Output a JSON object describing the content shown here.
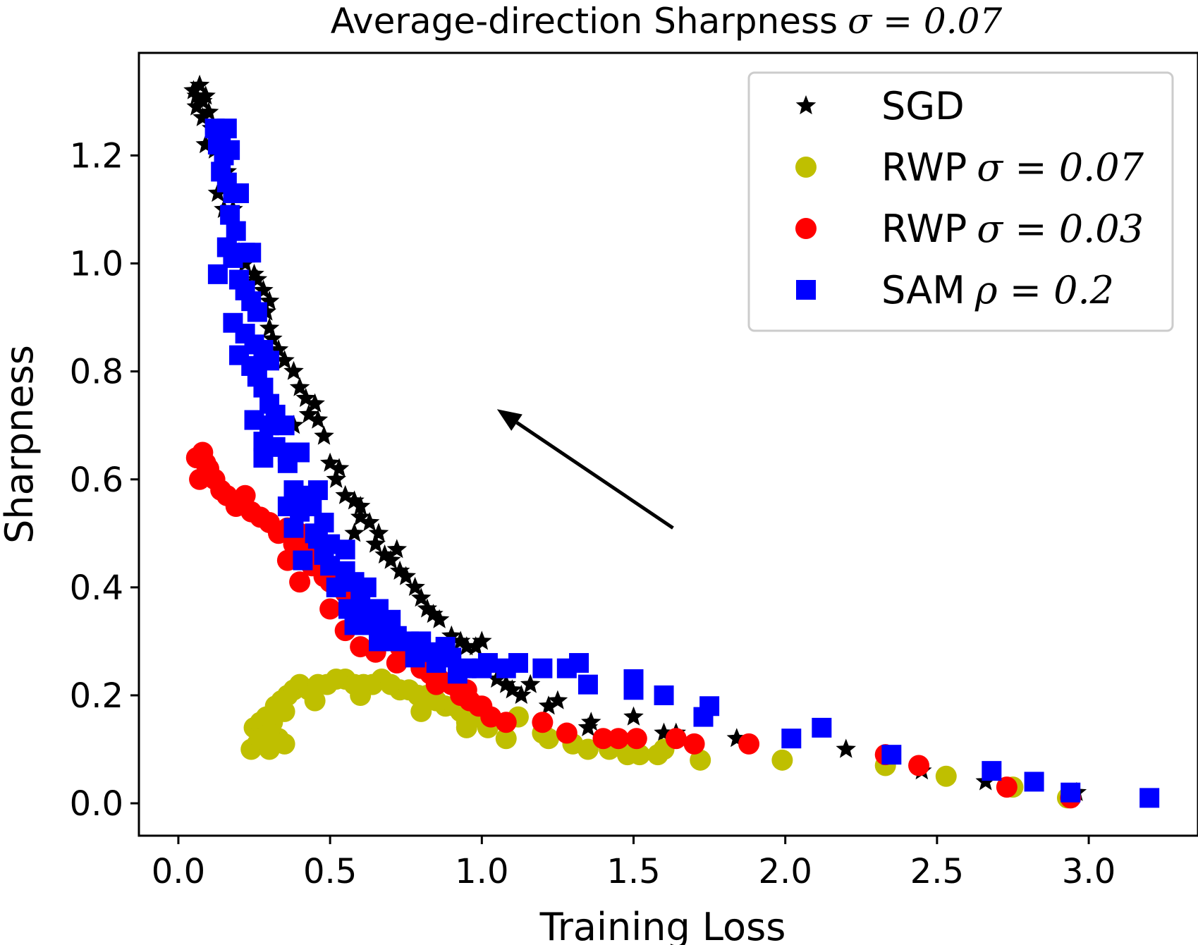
{
  "chart_data": {
    "type": "scatter",
    "title": "Average-direction Sharpness",
    "title_math": "σ = 0.07",
    "xlabel": "Training Loss",
    "ylabel": "Sharpness",
    "xlim": [
      -0.13,
      3.36
    ],
    "ylim": [
      -0.06,
      1.39
    ],
    "xticks": [
      0.0,
      0.5,
      1.0,
      1.5,
      2.0,
      2.5,
      3.0
    ],
    "xtick_labels": [
      "0.0",
      "0.5",
      "1.0",
      "1.5",
      "2.0",
      "2.5",
      "3.0"
    ],
    "yticks": [
      0.0,
      0.2,
      0.4,
      0.6,
      0.8,
      1.0,
      1.2
    ],
    "ytick_labels": [
      "0.0",
      "0.2",
      "0.4",
      "0.6",
      "0.8",
      "1.0",
      "1.2"
    ],
    "legend_position": "top-right",
    "annotation": {
      "type": "arrow",
      "from": [
        1.63,
        0.51
      ],
      "to": [
        1.05,
        0.73
      ]
    },
    "series": [
      {
        "name": "SGD",
        "label_math": "",
        "marker": "star",
        "color": "#000000",
        "points": [
          [
            0.05,
            1.32
          ],
          [
            0.06,
            1.31
          ],
          [
            0.07,
            1.33
          ],
          [
            0.08,
            1.3
          ],
          [
            0.09,
            1.31
          ],
          [
            0.06,
            1.29
          ],
          [
            0.1,
            1.28
          ],
          [
            0.08,
            1.27
          ],
          [
            0.11,
            1.25
          ],
          [
            0.09,
            1.22
          ],
          [
            0.12,
            1.21
          ],
          [
            0.14,
            1.18
          ],
          [
            0.16,
            1.17
          ],
          [
            0.13,
            1.13
          ],
          [
            0.18,
            1.1
          ],
          [
            0.19,
            1.07
          ],
          [
            0.22,
            1.0
          ],
          [
            0.25,
            0.98
          ],
          [
            0.28,
            0.95
          ],
          [
            0.3,
            0.93
          ],
          [
            0.3,
            0.88
          ],
          [
            0.31,
            0.86
          ],
          [
            0.33,
            0.84
          ],
          [
            0.35,
            0.82
          ],
          [
            0.38,
            0.8
          ],
          [
            0.4,
            0.77
          ],
          [
            0.42,
            0.75
          ],
          [
            0.43,
            0.72
          ],
          [
            0.46,
            0.71
          ],
          [
            0.38,
            0.7
          ],
          [
            0.5,
            0.63
          ],
          [
            0.52,
            0.6
          ],
          [
            0.55,
            0.57
          ],
          [
            0.58,
            0.56
          ],
          [
            0.6,
            0.55
          ],
          [
            0.63,
            0.52
          ],
          [
            0.58,
            0.5
          ],
          [
            0.65,
            0.48
          ],
          [
            0.68,
            0.46
          ],
          [
            0.7,
            0.45
          ],
          [
            0.73,
            0.43
          ],
          [
            0.75,
            0.42
          ],
          [
            0.78,
            0.4
          ],
          [
            0.8,
            0.38
          ],
          [
            0.82,
            0.36
          ],
          [
            0.84,
            0.35
          ],
          [
            0.86,
            0.34
          ],
          [
            0.9,
            0.31
          ],
          [
            0.93,
            0.3
          ],
          [
            0.95,
            0.29
          ],
          [
            0.98,
            0.29
          ],
          [
            1.0,
            0.3
          ],
          [
            1.05,
            0.23
          ],
          [
            1.08,
            0.22
          ],
          [
            1.1,
            0.21
          ],
          [
            1.13,
            0.2
          ],
          [
            1.16,
            0.22
          ],
          [
            1.22,
            0.18
          ],
          [
            1.25,
            0.19
          ],
          [
            1.36,
            0.15
          ],
          [
            1.35,
            0.14
          ],
          [
            1.5,
            0.16
          ],
          [
            1.6,
            0.13
          ],
          [
            1.64,
            0.13
          ],
          [
            1.84,
            0.12
          ],
          [
            2.2,
            0.1
          ],
          [
            2.45,
            0.06
          ],
          [
            2.66,
            0.04
          ],
          [
            2.75,
            0.03
          ],
          [
            2.96,
            0.02
          ],
          [
            0.15,
            1.1
          ],
          [
            0.2,
            1.02
          ],
          [
            0.26,
            0.97
          ],
          [
            0.29,
            0.91
          ],
          [
            0.45,
            0.74
          ],
          [
            0.48,
            0.68
          ],
          [
            0.53,
            0.62
          ],
          [
            0.6,
            0.53
          ],
          [
            0.66,
            0.5
          ],
          [
            0.72,
            0.47
          ]
        ]
      },
      {
        "name": "RWP",
        "label_math": "σ = 0.07",
        "marker": "circle",
        "color": "#bfbf00",
        "points": [
          [
            0.24,
            0.1
          ],
          [
            0.26,
            0.11
          ],
          [
            0.28,
            0.12
          ],
          [
            0.3,
            0.1
          ],
          [
            0.33,
            0.12
          ],
          [
            0.35,
            0.11
          ],
          [
            0.25,
            0.14
          ],
          [
            0.27,
            0.15
          ],
          [
            0.29,
            0.16
          ],
          [
            0.31,
            0.15
          ],
          [
            0.32,
            0.18
          ],
          [
            0.34,
            0.19
          ],
          [
            0.36,
            0.2
          ],
          [
            0.38,
            0.21
          ],
          [
            0.4,
            0.22
          ],
          [
            0.43,
            0.21
          ],
          [
            0.46,
            0.22
          ],
          [
            0.49,
            0.22
          ],
          [
            0.52,
            0.23
          ],
          [
            0.55,
            0.23
          ],
          [
            0.58,
            0.22
          ],
          [
            0.61,
            0.22
          ],
          [
            0.64,
            0.22
          ],
          [
            0.67,
            0.23
          ],
          [
            0.7,
            0.22
          ],
          [
            0.73,
            0.21
          ],
          [
            0.76,
            0.21
          ],
          [
            0.79,
            0.2
          ],
          [
            0.82,
            0.2
          ],
          [
            0.85,
            0.19
          ],
          [
            0.88,
            0.18
          ],
          [
            0.91,
            0.18
          ],
          [
            0.93,
            0.17
          ],
          [
            0.95,
            0.15
          ],
          [
            0.98,
            0.16
          ],
          [
            1.02,
            0.14
          ],
          [
            1.08,
            0.12
          ],
          [
            1.12,
            0.16
          ],
          [
            1.2,
            0.13
          ],
          [
            1.22,
            0.12
          ],
          [
            1.3,
            0.11
          ],
          [
            1.35,
            0.1
          ],
          [
            1.42,
            0.1
          ],
          [
            1.48,
            0.09
          ],
          [
            1.52,
            0.09
          ],
          [
            1.58,
            0.09
          ],
          [
            1.6,
            0.1
          ],
          [
            1.72,
            0.08
          ],
          [
            1.99,
            0.08
          ],
          [
            2.33,
            0.07
          ],
          [
            2.53,
            0.05
          ],
          [
            2.75,
            0.03
          ],
          [
            2.93,
            0.01
          ],
          [
            0.27,
            0.12
          ],
          [
            0.3,
            0.13
          ],
          [
            0.35,
            0.17
          ],
          [
            0.45,
            0.19
          ],
          [
            0.6,
            0.2
          ],
          [
            0.8,
            0.17
          ],
          [
            0.95,
            0.14
          ]
        ]
      },
      {
        "name": "RWP",
        "label_math": "σ = 0.03",
        "marker": "circle",
        "color": "#ff0000",
        "points": [
          [
            0.06,
            0.64
          ],
          [
            0.08,
            0.65
          ],
          [
            0.09,
            0.63
          ],
          [
            0.1,
            0.62
          ],
          [
            0.07,
            0.6
          ],
          [
            0.12,
            0.6
          ],
          [
            0.14,
            0.58
          ],
          [
            0.16,
            0.57
          ],
          [
            0.19,
            0.55
          ],
          [
            0.22,
            0.57
          ],
          [
            0.24,
            0.54
          ],
          [
            0.27,
            0.53
          ],
          [
            0.3,
            0.52
          ],
          [
            0.33,
            0.5
          ],
          [
            0.36,
            0.51
          ],
          [
            0.38,
            0.48
          ],
          [
            0.4,
            0.5
          ],
          [
            0.42,
            0.47
          ],
          [
            0.36,
            0.45
          ],
          [
            0.44,
            0.44
          ],
          [
            0.48,
            0.42
          ],
          [
            0.5,
            0.41
          ],
          [
            0.55,
            0.39
          ],
          [
            0.58,
            0.38
          ],
          [
            0.61,
            0.36
          ],
          [
            0.64,
            0.34
          ],
          [
            0.67,
            0.32
          ],
          [
            0.7,
            0.31
          ],
          [
            0.73,
            0.29
          ],
          [
            0.78,
            0.27
          ],
          [
            0.8,
            0.25
          ],
          [
            0.83,
            0.24
          ],
          [
            0.86,
            0.23
          ],
          [
            0.9,
            0.22
          ],
          [
            0.93,
            0.2
          ],
          [
            0.96,
            0.19
          ],
          [
            0.99,
            0.18
          ],
          [
            1.03,
            0.16
          ],
          [
            1.08,
            0.15
          ],
          [
            1.2,
            0.15
          ],
          [
            1.28,
            0.13
          ],
          [
            1.4,
            0.12
          ],
          [
            1.45,
            0.12
          ],
          [
            1.51,
            0.12
          ],
          [
            1.64,
            0.12
          ],
          [
            1.7,
            0.11
          ],
          [
            1.88,
            0.11
          ],
          [
            2.33,
            0.09
          ],
          [
            2.44,
            0.07
          ],
          [
            2.73,
            0.03
          ],
          [
            2.94,
            0.01
          ],
          [
            0.4,
            0.41
          ],
          [
            0.5,
            0.36
          ],
          [
            0.6,
            0.29
          ],
          [
            0.65,
            0.28
          ],
          [
            0.72,
            0.26
          ],
          [
            0.85,
            0.22
          ],
          [
            0.95,
            0.21
          ],
          [
            1.0,
            0.18
          ],
          [
            0.55,
            0.32
          ]
        ]
      },
      {
        "name": "SAM",
        "label_math": "ρ = 0.2",
        "marker": "square",
        "color": "#0000ff",
        "points": [
          [
            0.12,
            1.25
          ],
          [
            0.14,
            1.24
          ],
          [
            0.16,
            1.25
          ],
          [
            0.13,
            1.22
          ],
          [
            0.15,
            1.2
          ],
          [
            0.17,
            1.21
          ],
          [
            0.14,
            1.17
          ],
          [
            0.16,
            1.15
          ],
          [
            0.18,
            1.13
          ],
          [
            0.2,
            1.13
          ],
          [
            0.17,
            1.09
          ],
          [
            0.19,
            1.06
          ],
          [
            0.16,
            1.03
          ],
          [
            0.18,
            1.01
          ],
          [
            0.22,
            1.02
          ],
          [
            0.24,
            1.02
          ],
          [
            0.13,
            0.98
          ],
          [
            0.2,
            0.97
          ],
          [
            0.22,
            0.95
          ],
          [
            0.24,
            0.93
          ],
          [
            0.26,
            0.91
          ],
          [
            0.18,
            0.89
          ],
          [
            0.22,
            0.87
          ],
          [
            0.25,
            0.85
          ],
          [
            0.2,
            0.83
          ],
          [
            0.28,
            0.84
          ],
          [
            0.24,
            0.81
          ],
          [
            0.3,
            0.82
          ],
          [
            0.26,
            0.79
          ],
          [
            0.28,
            0.77
          ],
          [
            0.3,
            0.74
          ],
          [
            0.32,
            0.72
          ],
          [
            0.25,
            0.71
          ],
          [
            0.3,
            0.7
          ],
          [
            0.35,
            0.7
          ],
          [
            0.28,
            0.67
          ],
          [
            0.32,
            0.66
          ],
          [
            0.36,
            0.65
          ],
          [
            0.4,
            0.65
          ],
          [
            0.28,
            0.64
          ],
          [
            0.36,
            0.63
          ],
          [
            0.38,
            0.58
          ],
          [
            0.42,
            0.57
          ],
          [
            0.46,
            0.58
          ],
          [
            0.36,
            0.55
          ],
          [
            0.4,
            0.54
          ],
          [
            0.44,
            0.55
          ],
          [
            0.38,
            0.51
          ],
          [
            0.48,
            0.52
          ],
          [
            0.46,
            0.49
          ],
          [
            0.41,
            0.45
          ],
          [
            0.48,
            0.46
          ],
          [
            0.5,
            0.44
          ],
          [
            0.55,
            0.43
          ],
          [
            0.52,
            0.4
          ],
          [
            0.58,
            0.41
          ],
          [
            0.6,
            0.38
          ],
          [
            0.56,
            0.36
          ],
          [
            0.62,
            0.36
          ],
          [
            0.66,
            0.36
          ],
          [
            0.58,
            0.33
          ],
          [
            0.64,
            0.33
          ],
          [
            0.68,
            0.32
          ],
          [
            0.72,
            0.31
          ],
          [
            0.66,
            0.3
          ],
          [
            0.76,
            0.3
          ],
          [
            0.8,
            0.3
          ],
          [
            0.78,
            0.27
          ],
          [
            0.84,
            0.28
          ],
          [
            0.88,
            0.29
          ],
          [
            0.9,
            0.27
          ],
          [
            0.95,
            0.25
          ],
          [
            1.02,
            0.26
          ],
          [
            1.08,
            0.25
          ],
          [
            1.12,
            0.26
          ],
          [
            1.2,
            0.25
          ],
          [
            1.28,
            0.25
          ],
          [
            1.32,
            0.26
          ],
          [
            1.35,
            0.22
          ],
          [
            1.5,
            0.23
          ],
          [
            1.5,
            0.21
          ],
          [
            1.6,
            0.2
          ],
          [
            1.75,
            0.18
          ],
          [
            1.73,
            0.16
          ],
          [
            2.02,
            0.12
          ],
          [
            2.12,
            0.14
          ],
          [
            2.35,
            0.09
          ],
          [
            2.68,
            0.06
          ],
          [
            2.82,
            0.04
          ],
          [
            2.94,
            0.02
          ],
          [
            3.2,
            0.01
          ],
          [
            0.5,
            0.48
          ],
          [
            0.55,
            0.47
          ],
          [
            0.62,
            0.4
          ],
          [
            0.7,
            0.34
          ],
          [
            0.85,
            0.26
          ],
          [
            0.92,
            0.24
          ],
          [
            1.0,
            0.25
          ],
          [
            0.45,
            0.5
          ],
          [
            0.7,
            0.3
          ]
        ]
      }
    ]
  }
}
